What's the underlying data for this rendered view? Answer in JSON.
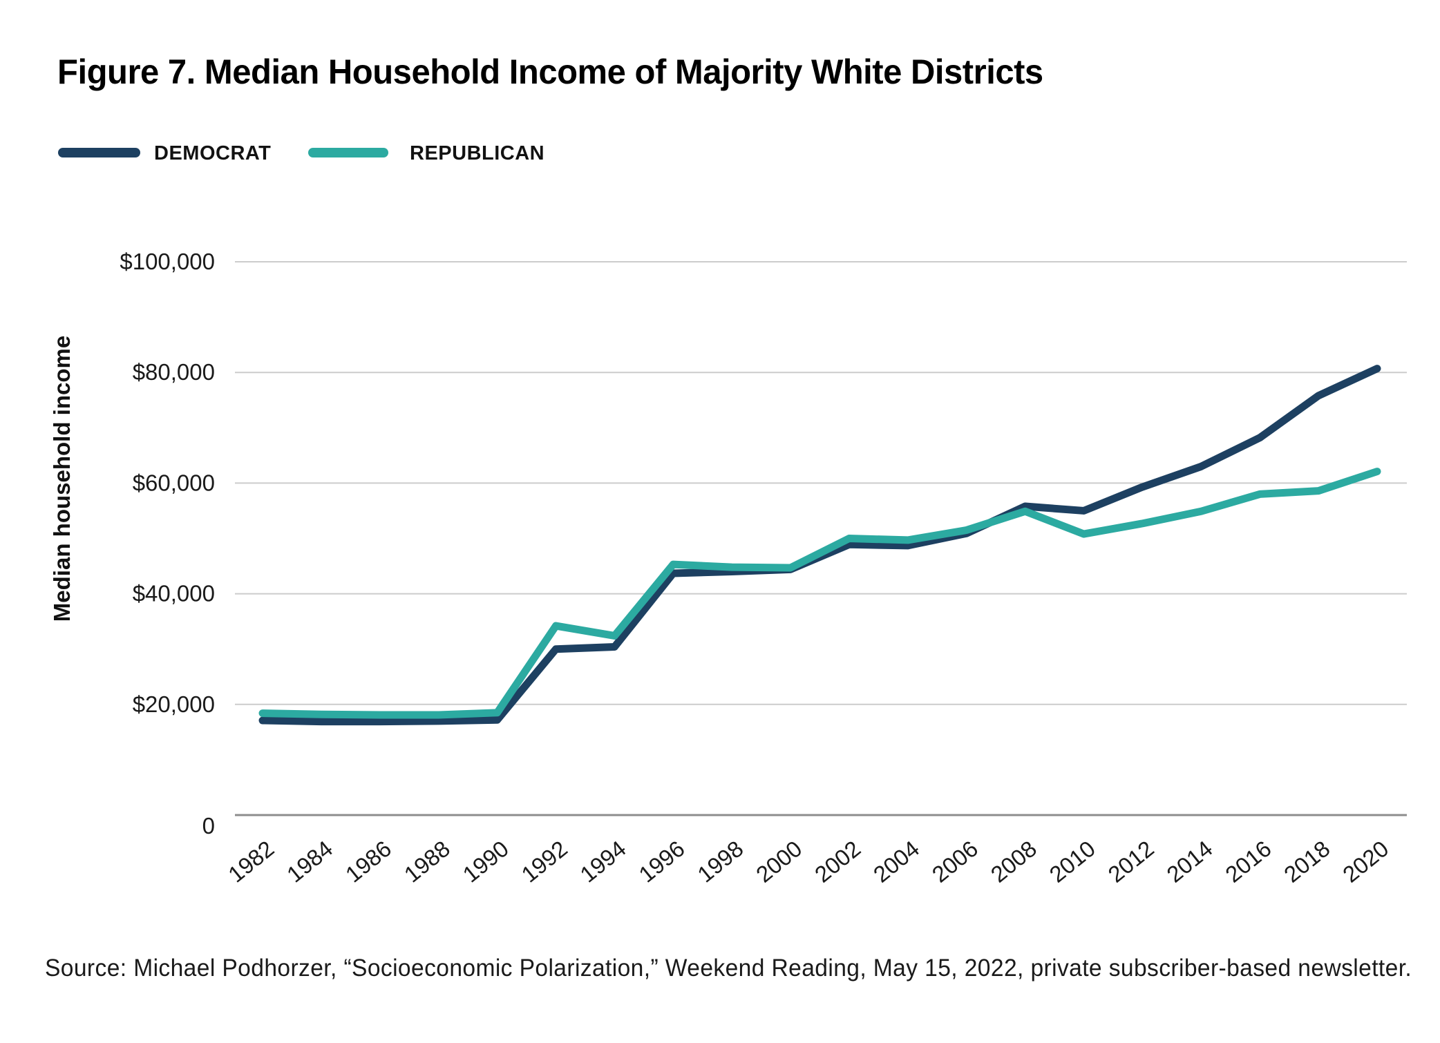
{
  "title": "Figure 7. Median Household Income of Majority White Districts",
  "legend": [
    {
      "label": "DEMOCRAT",
      "color": "#1d4061"
    },
    {
      "label": "REPUBLICAN",
      "color": "#2caaa1"
    }
  ],
  "source": "Source: Michael Podhorzer, “Socioeconomic Polarization,” Weekend Reading, May 15, 2022, private subscriber-based newsletter.",
  "chart_data": {
    "type": "line",
    "title": "Figure 7. Median Household Income of Majority White Districts",
    "xlabel": "",
    "ylabel": "Median household income",
    "x": [
      1982,
      1984,
      1986,
      1988,
      1990,
      1992,
      1994,
      1996,
      1998,
      2000,
      2002,
      2004,
      2006,
      2008,
      2010,
      2012,
      2014,
      2016,
      2018,
      2020
    ],
    "series": [
      {
        "name": "DEMOCRAT",
        "color": "#1d4061",
        "values": [
          17100,
          16900,
          16900,
          17000,
          17200,
          30000,
          30400,
          43700,
          44000,
          44400,
          48900,
          48700,
          50900,
          55800,
          55000,
          59300,
          63000,
          68200,
          75800,
          80700
        ]
      },
      {
        "name": "REPUBLICAN",
        "color": "#2caaa1",
        "values": [
          18400,
          18200,
          18100,
          18100,
          18500,
          34200,
          32400,
          45300,
          44800,
          44700,
          50000,
          49700,
          51500,
          54900,
          50800,
          52700,
          54900,
          58000,
          58600,
          62100
        ]
      }
    ],
    "ylim": [
      0,
      100000
    ],
    "ytick_values": [
      0,
      20000,
      40000,
      60000,
      80000,
      100000
    ],
    "ytick_labels": [
      "0",
      "$20,000",
      "$40,000",
      "$60,000",
      "$80,000",
      "$100,000"
    ],
    "grid": "horizontal",
    "legend_position": "top-left"
  }
}
